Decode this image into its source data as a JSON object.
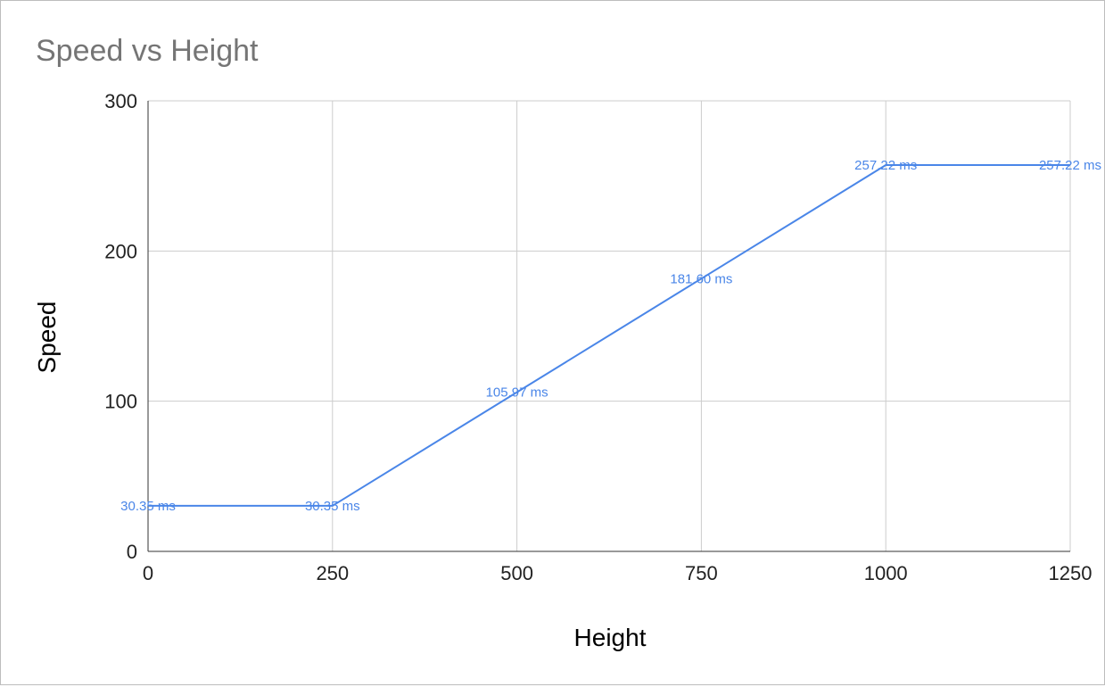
{
  "chart_data": {
    "type": "line",
    "title": "Speed vs Height",
    "xlabel": "Height",
    "ylabel": "Speed",
    "xlim": [
      0,
      1250
    ],
    "ylim": [
      0,
      300
    ],
    "xticks": [
      0,
      250,
      500,
      750,
      1000,
      1250
    ],
    "yticks": [
      0,
      100,
      200,
      300
    ],
    "grid": true,
    "legend": "none",
    "series": [
      {
        "color": "#4a86e8",
        "points": [
          {
            "x": 0,
            "y": 30.35,
            "label": "30.35 ms"
          },
          {
            "x": 250,
            "y": 30.35,
            "label": "30.35 ms"
          },
          {
            "x": 500,
            "y": 105.97,
            "label": "105.97 ms"
          },
          {
            "x": 750,
            "y": 181.6,
            "label": "181.60 ms"
          },
          {
            "x": 1000,
            "y": 257.22,
            "label": "257.22 ms"
          },
          {
            "x": 1250,
            "y": 257.22,
            "label": "257.22 ms"
          }
        ]
      }
    ],
    "colors": {
      "line": "#4a86e8",
      "grid": "#cccccc",
      "axis": "#333333",
      "title": "#757575"
    }
  }
}
